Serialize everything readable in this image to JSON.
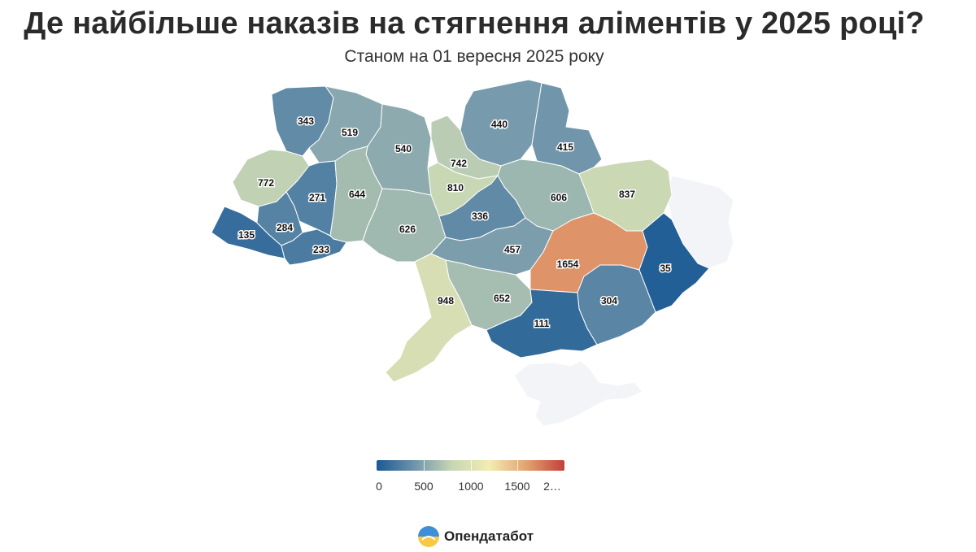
{
  "title": "Де найбільше наказів на стягнення аліментів у 2025 році?",
  "subtitle": "Станом на 01 вересня 2025 року",
  "legend": {
    "min": 0,
    "max": 2000,
    "tick_labels": [
      "0",
      "500",
      "1000",
      "1500",
      "2…"
    ],
    "colors": [
      "#1b5a94",
      "#6e93ab",
      "#c7d6b4",
      "#f2ecb2",
      "#e2a16f",
      "#c3403a"
    ]
  },
  "map_data": {
    "type": "choropleth",
    "values": [
      {
        "label": "343",
        "value": 343
      },
      {
        "label": "519",
        "value": 519
      },
      {
        "label": "540",
        "value": 540
      },
      {
        "label": "440",
        "value": 440
      },
      {
        "label": "415",
        "value": 415
      },
      {
        "label": "742",
        "value": 742
      },
      {
        "label": "772",
        "value": 772
      },
      {
        "label": "271",
        "value": 271
      },
      {
        "label": "644",
        "value": 644
      },
      {
        "label": "810",
        "value": 810
      },
      {
        "label": "606",
        "value": 606
      },
      {
        "label": "837",
        "value": 837
      },
      {
        "label": "135",
        "value": 135
      },
      {
        "label": "284",
        "value": 284
      },
      {
        "label": "233",
        "value": 233
      },
      {
        "label": "626",
        "value": 626
      },
      {
        "label": "336",
        "value": 336
      },
      {
        "label": "457",
        "value": 457
      },
      {
        "label": "1654",
        "value": 1654
      },
      {
        "label": "35",
        "value": 35
      },
      {
        "label": "948",
        "value": 948
      },
      {
        "label": "652",
        "value": 652
      },
      {
        "label": "304",
        "value": 304
      },
      {
        "label": "111",
        "value": 111
      }
    ],
    "no_data_color": "#f3f4f7"
  },
  "brand": {
    "name": "Опендатабот"
  }
}
